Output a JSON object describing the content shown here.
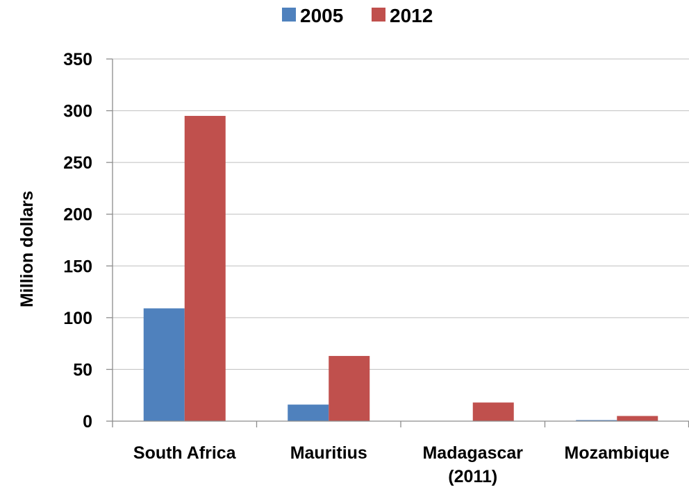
{
  "chart_data": {
    "type": "bar",
    "categories": [
      [
        "South Africa"
      ],
      [
        "Mauritius"
      ],
      [
        "Madagascar",
        "(2011)"
      ],
      [
        "Mozambique"
      ]
    ],
    "series": [
      {
        "name": "2005",
        "color": "#4f81bd",
        "values": [
          109,
          16,
          0,
          1
        ]
      },
      {
        "name": "2012",
        "color": "#c0504d",
        "values": [
          295,
          63,
          18,
          5
        ]
      }
    ],
    "title": "",
    "xlabel": "",
    "ylabel": "Million dollars",
    "ylim": [
      0,
      350
    ],
    "yticks": [
      0,
      50,
      100,
      150,
      200,
      250,
      300,
      350
    ],
    "grid": true,
    "legend_position": "top-center"
  }
}
